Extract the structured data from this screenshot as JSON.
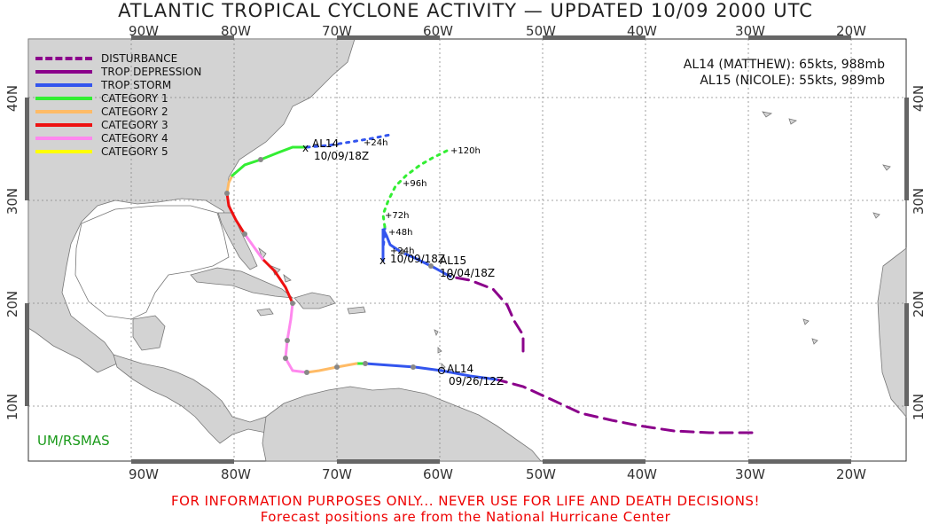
{
  "title": "ATLANTIC TROPICAL CYCLONE ACTIVITY — UPDATED 10/09 2000 UTC",
  "lon_labels": [
    "90W",
    "80W",
    "70W",
    "60W",
    "50W",
    "40W",
    "30W",
    "20W"
  ],
  "lat_labels": [
    "40N",
    "30N",
    "20N",
    "10N"
  ],
  "legend": [
    {
      "label": "DISTURBANCE",
      "color": "#8b008b",
      "style": "dash"
    },
    {
      "label": "TROP DEPRESSION",
      "color": "#8b008b",
      "style": "solid"
    },
    {
      "label": "TROP STORM",
      "color": "#3355ee",
      "style": "solid"
    },
    {
      "label": "CATEGORY 1",
      "color": "#33ee33",
      "style": "solid"
    },
    {
      "label": "CATEGORY 2",
      "color": "#ffbb66",
      "style": "solid"
    },
    {
      "label": "CATEGORY 3",
      "color": "#ee1111",
      "style": "solid"
    },
    {
      "label": "CATEGORY 4",
      "color": "#ff88ee",
      "style": "solid"
    },
    {
      "label": "CATEGORY 5",
      "color": "#ffff00",
      "style": "solid"
    }
  ],
  "storm_info": [
    "AL14 (MATTHEW): 65kts, 988mb",
    "AL15 (NICOLE): 55kts, 989mb"
  ],
  "credit": "UM/RSMAS",
  "disclaimer": "FOR INFORMATION PURPOSES ONLY... NEVER USE FOR LIFE AND DEATH DECISIONS!",
  "disclaimer2": "Forecast positions are from the National Hurricane Center",
  "storms": {
    "al14": {
      "name": "AL14",
      "start_label": "09/26/12Z",
      "current_label": "10/09/18Z",
      "forecast_labels": [
        "+24h"
      ]
    },
    "al15": {
      "name": "AL15",
      "start_label": "10/04/18Z",
      "current_label": "10/09/18Z",
      "forecast_labels": [
        "+24h",
        "+48h",
        "+72h",
        "+96h",
        "+120h"
      ]
    }
  },
  "colors": {
    "land": "#d3d3d3",
    "coast": "#777777",
    "grid": "#888888",
    "frame_bar": "#666666"
  }
}
